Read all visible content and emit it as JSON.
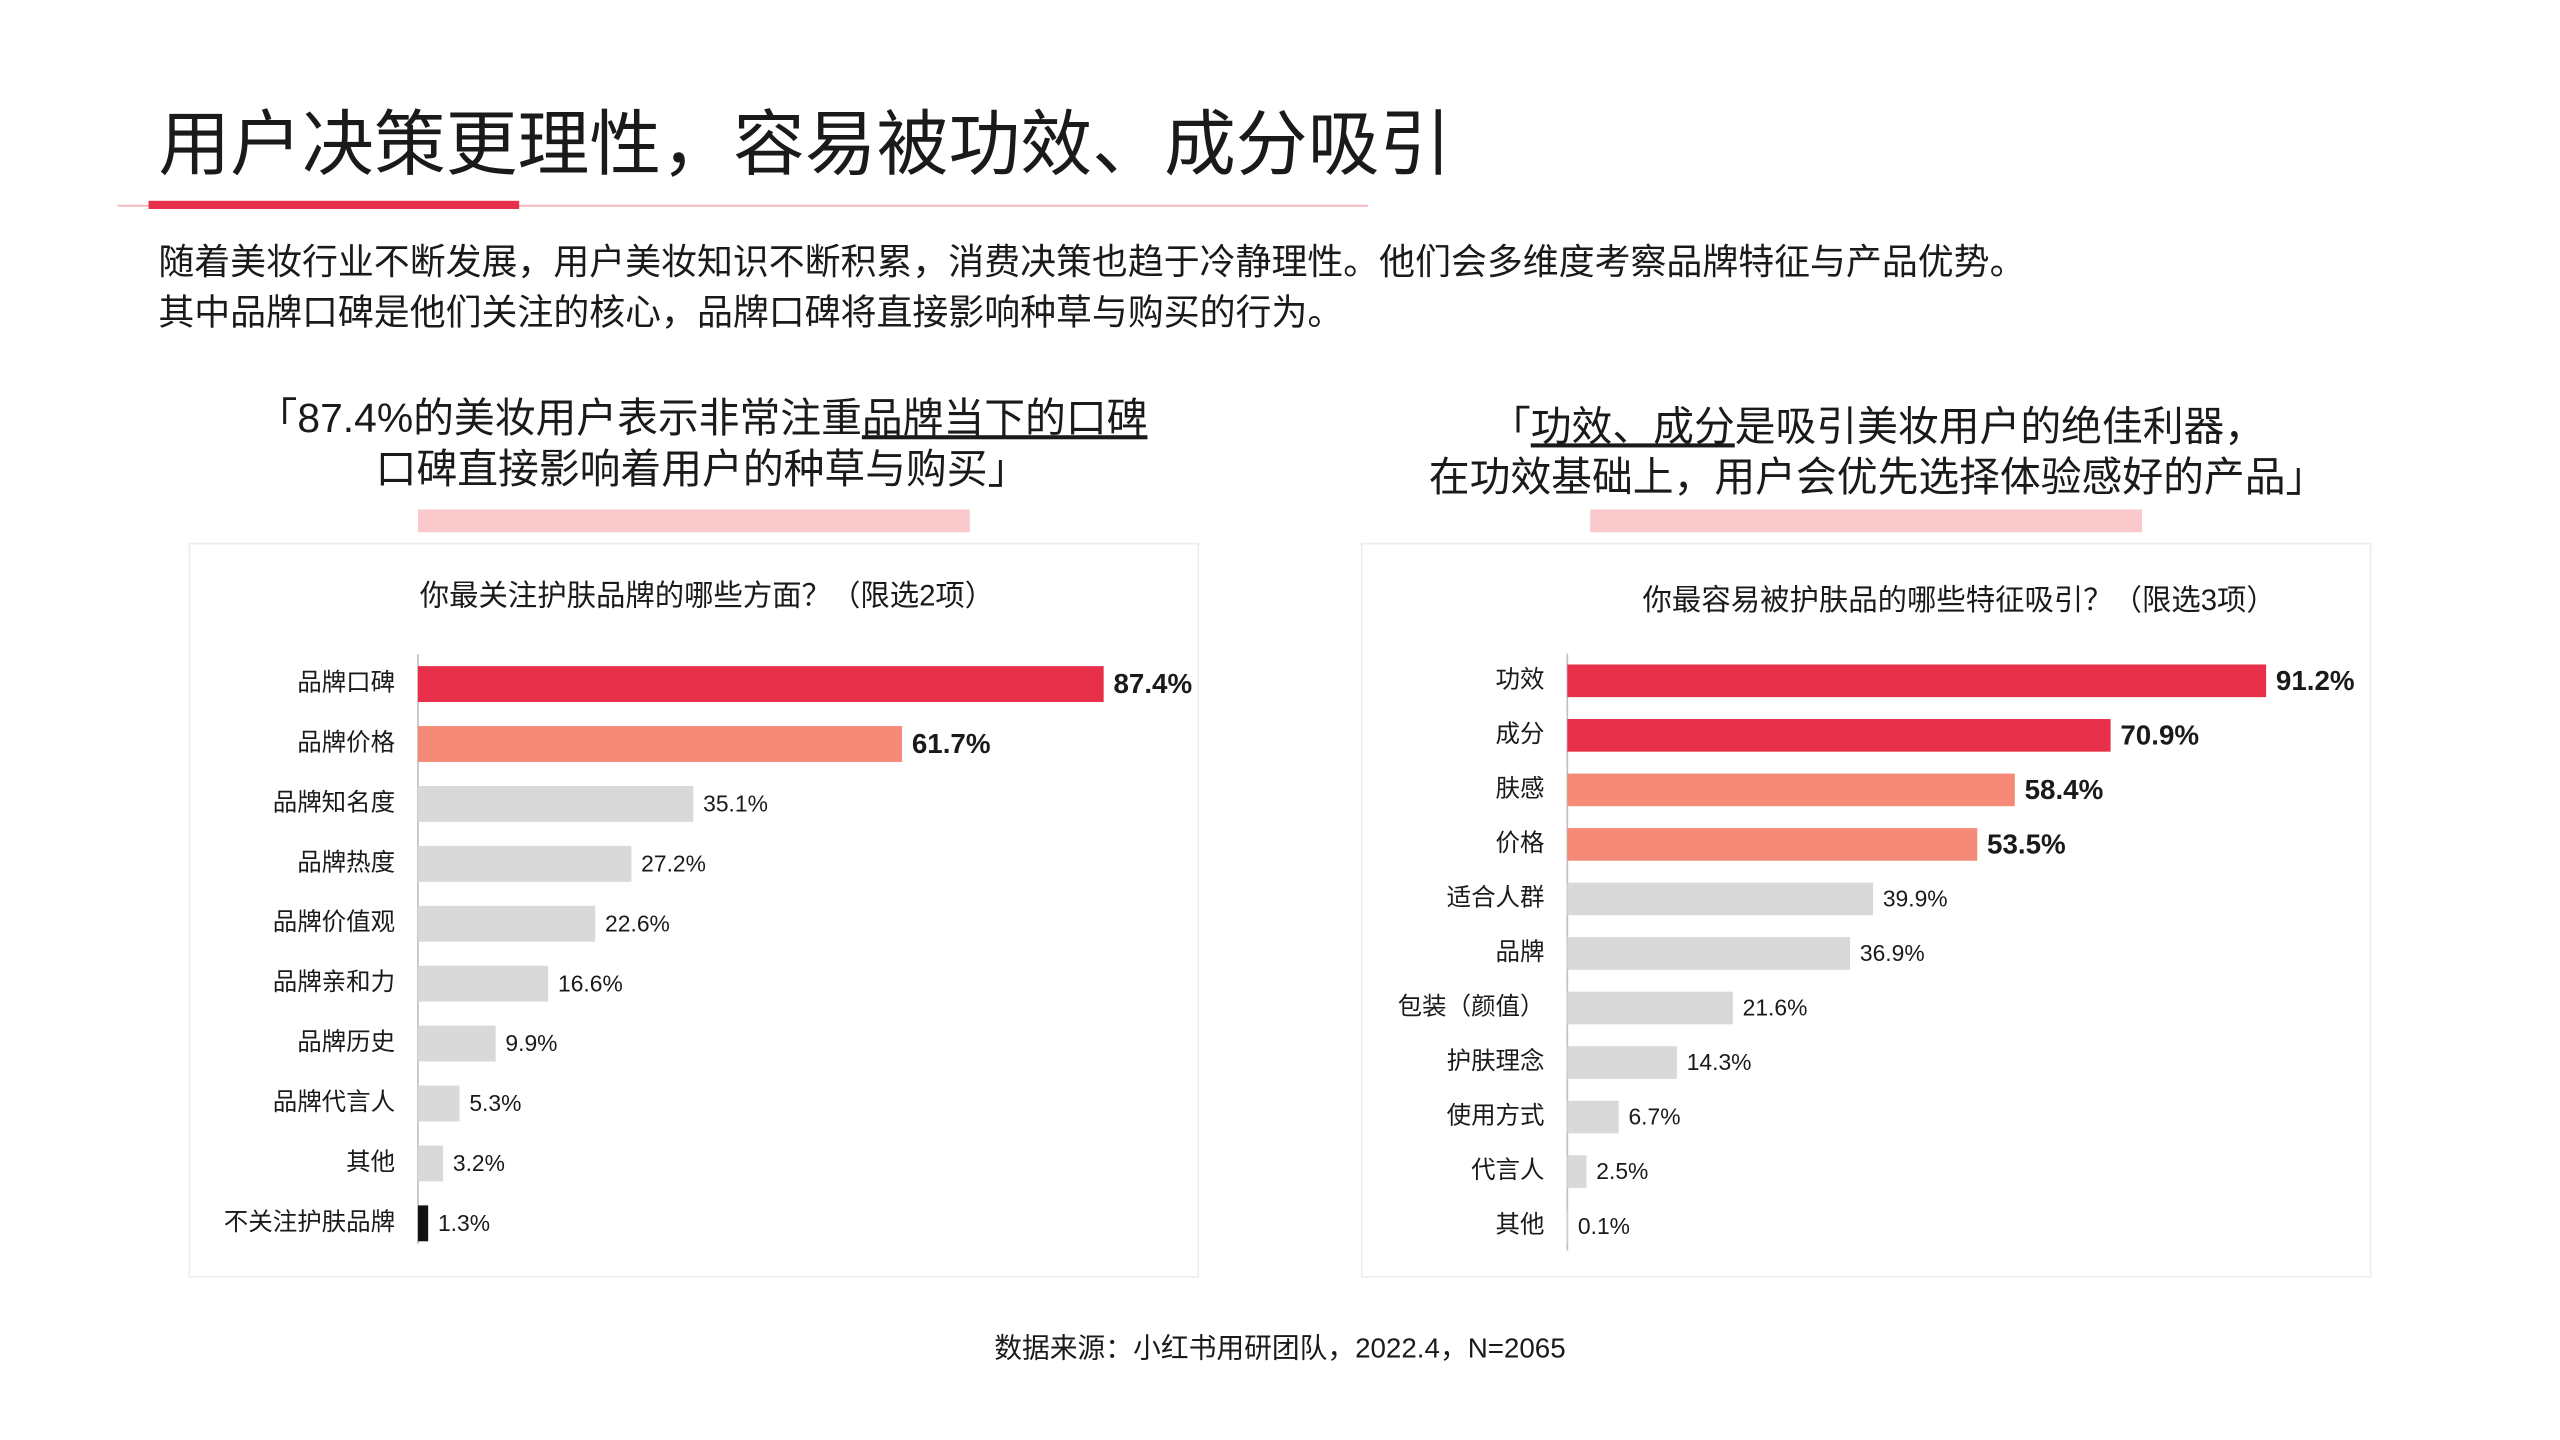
{
  "header": {
    "title": "用户决策更理性，容易被功效、成分吸引",
    "paragraph": [
      "随着美妆行业不断发展，用户美妆知识不断积累，消费决策也趋于冷静理性。他们会多维度考察品牌特征与产品优势。",
      "其中品牌口碑是他们关注的核心，品牌口碑将直接影响种草与购买的行为。"
    ]
  },
  "quotes": [
    {
      "lines": [
        [
          {
            "text": "「87.4%的美妆用户表示非常注重"
          },
          {
            "text": "品牌当下的口碑",
            "underline": true
          }
        ],
        [
          {
            "text": "口碑直接影响着用户的种草与购买」"
          }
        ]
      ]
    },
    {
      "lines": [
        [
          {
            "text": "「"
          },
          {
            "text": "功效、成分",
            "underline": true
          },
          {
            "text": "是吸引美妆用户的绝佳利器，"
          }
        ],
        [
          {
            "text": "在功效基础上，用户会优先选择体验感好的产品」"
          }
        ]
      ]
    }
  ],
  "chart_data": [
    {
      "type": "bar",
      "orientation": "horizontal",
      "title": "你最关注护肤品牌的哪些方面？（限选2项）",
      "categories": [
        "品牌口碑",
        "品牌价格",
        "品牌知名度",
        "品牌热度",
        "品牌价值观",
        "品牌亲和力",
        "品牌历史",
        "品牌代言人",
        "其他",
        "不关注护肤品牌"
      ],
      "values": [
        87.4,
        61.7,
        35.1,
        27.2,
        22.6,
        16.6,
        9.9,
        5.3,
        3.2,
        1.3
      ],
      "value_labels": [
        "87.4%",
        "61.7%",
        "35.1%",
        "27.2%",
        "22.6%",
        "16.6%",
        "9.9%",
        "5.3%",
        "3.2%",
        "1.3%"
      ],
      "colors": [
        "#e8304a",
        "#f58a78",
        "#d9d9d9",
        "#d9d9d9",
        "#d9d9d9",
        "#d9d9d9",
        "#d9d9d9",
        "#d9d9d9",
        "#d9d9d9",
        "#111111"
      ],
      "value_label_colors": [
        "#e0284a",
        "#e0284a",
        "#222222",
        "#222222",
        "#222222",
        "#222222",
        "#222222",
        "#222222",
        "#222222",
        "#222222"
      ]
    },
    {
      "type": "bar",
      "orientation": "horizontal",
      "title": "你最容易被护肤品的哪些特征吸引？（限选3项）",
      "categories": [
        "功效",
        "成分",
        "肤感",
        "价格",
        "适合人群",
        "品牌",
        "包装（颜值）",
        "护肤理念",
        "使用方式",
        "代言人",
        "其他"
      ],
      "values": [
        91.2,
        70.9,
        58.4,
        53.5,
        39.9,
        36.9,
        21.6,
        14.3,
        6.7,
        2.5,
        0.1
      ],
      "value_labels": [
        "91.2%",
        "70.9%",
        "58.4%",
        "53.5%",
        "39.9%",
        "36.9%",
        "21.6%",
        "14.3%",
        "6.7%",
        "2.5%",
        "0.1%"
      ],
      "colors": [
        "#e8304a",
        "#e8304a",
        "#f58a78",
        "#f58a78",
        "#d9d9d9",
        "#d9d9d9",
        "#d9d9d9",
        "#d9d9d9",
        "#d9d9d9",
        "#d9d9d9",
        "#d9d9d9"
      ],
      "value_label_colors": [
        "#e0284a",
        "#e0284a",
        "#e0284a",
        "#e0284a",
        "#222222",
        "#222222",
        "#222222",
        "#222222",
        "#222222",
        "#222222",
        "#222222"
      ]
    }
  ],
  "footer": {
    "source": "数据来源：小红书用研团队，2022.4，N=2065"
  }
}
